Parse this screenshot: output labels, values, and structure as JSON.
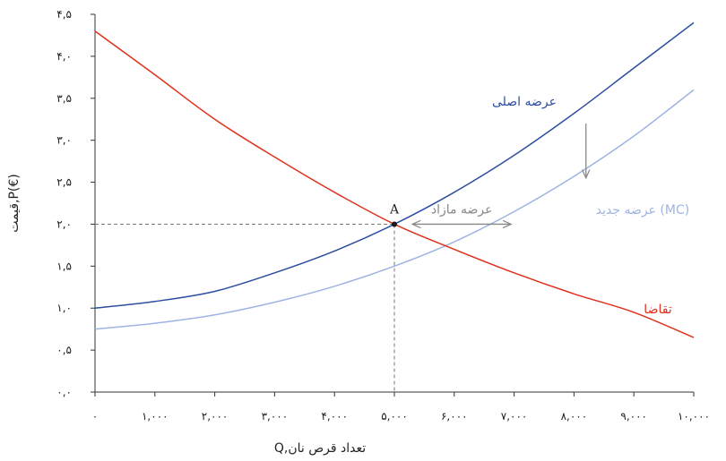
{
  "chart_data": {
    "type": "line",
    "title": "",
    "xlabel": "Q,تعداد قرص نان",
    "ylabel": "قیمت,P(€)",
    "xlim": [
      0,
      10000
    ],
    "ylim": [
      0,
      4.5
    ],
    "x_ticks": [
      0,
      1000,
      2000,
      3000,
      4000,
      5000,
      6000,
      7000,
      8000,
      9000,
      10000
    ],
    "x_tick_labels": [
      "۰",
      "۱,۰۰۰",
      "۲,۰۰۰",
      "۳,۰۰۰",
      "۴,۰۰۰",
      "۵,۰۰۰",
      "۶,۰۰۰",
      "۷,۰۰۰",
      "۸,۰۰۰",
      "۹,۰۰۰",
      "۱۰,۰۰۰"
    ],
    "y_ticks": [
      0,
      0.5,
      1,
      1.5,
      2,
      2.5,
      3,
      3.5,
      4,
      4.5
    ],
    "y_tick_labels": [
      "۰,۰",
      "۰,۵",
      "۱,۰",
      "۱,۵",
      "۲,۰",
      "۲,۵",
      "۳,۰",
      "۳,۵",
      "۴,۰",
      "۴,۵"
    ],
    "grid": false,
    "series": [
      {
        "name": "عرضه اصلی",
        "color": "#2c4da0",
        "x": [
          0,
          1000,
          2000,
          3000,
          4000,
          5000,
          6000,
          7000,
          8000,
          9000,
          10000
        ],
        "y": [
          1.0,
          1.08,
          1.2,
          1.42,
          1.68,
          2.0,
          2.38,
          2.82,
          3.32,
          3.86,
          4.4
        ]
      },
      {
        "name": "عرضه جدید (MC)",
        "color": "#9fb3e2",
        "x": [
          0,
          1000,
          2000,
          3000,
          4000,
          5000,
          6000,
          7000,
          8000,
          9000,
          10000
        ],
        "y": [
          0.75,
          0.82,
          0.92,
          1.07,
          1.26,
          1.5,
          1.79,
          2.15,
          2.57,
          3.05,
          3.6
        ]
      },
      {
        "name": "تقاضا",
        "color": "#e0301e",
        "x": [
          0,
          1000,
          2000,
          3000,
          4000,
          5000,
          6000,
          7000,
          8000,
          9000,
          10000
        ],
        "y": [
          4.3,
          3.78,
          3.25,
          2.8,
          2.38,
          2.0,
          1.7,
          1.42,
          1.17,
          0.95,
          0.65
        ]
      }
    ],
    "annotations": {
      "point": {
        "label": "A",
        "x": 5000,
        "y": 2.0
      },
      "shift_label": "عرضه مازاد",
      "shift_arrow": {
        "x_from": 5300,
        "x_to": 6950,
        "y": 2.0,
        "color": "#888888"
      },
      "down_arrow": {
        "x": 8200,
        "y_from": 3.2,
        "y_to": 2.55,
        "color": "#888888"
      }
    }
  }
}
